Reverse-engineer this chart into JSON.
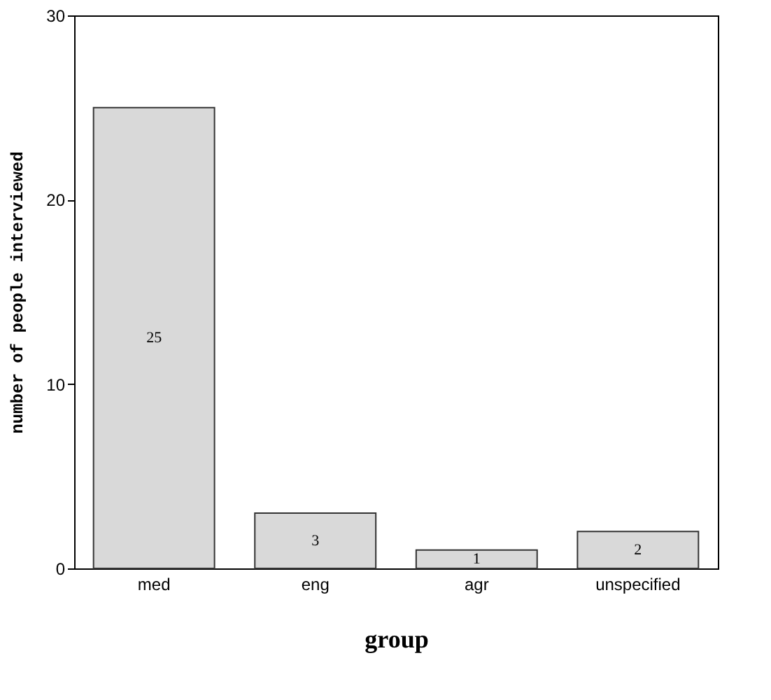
{
  "chart_data": {
    "type": "bar",
    "xlabel": "group",
    "ylabel": "number of people interviewed",
    "categories": [
      "med",
      "eng",
      "agr",
      "unspecified"
    ],
    "values": [
      25,
      3,
      1,
      2
    ],
    "color": "#d9d9d9",
    "ylim": [
      0,
      30
    ],
    "yticks": [
      0,
      10,
      20,
      30
    ],
    "data_labels": true
  }
}
